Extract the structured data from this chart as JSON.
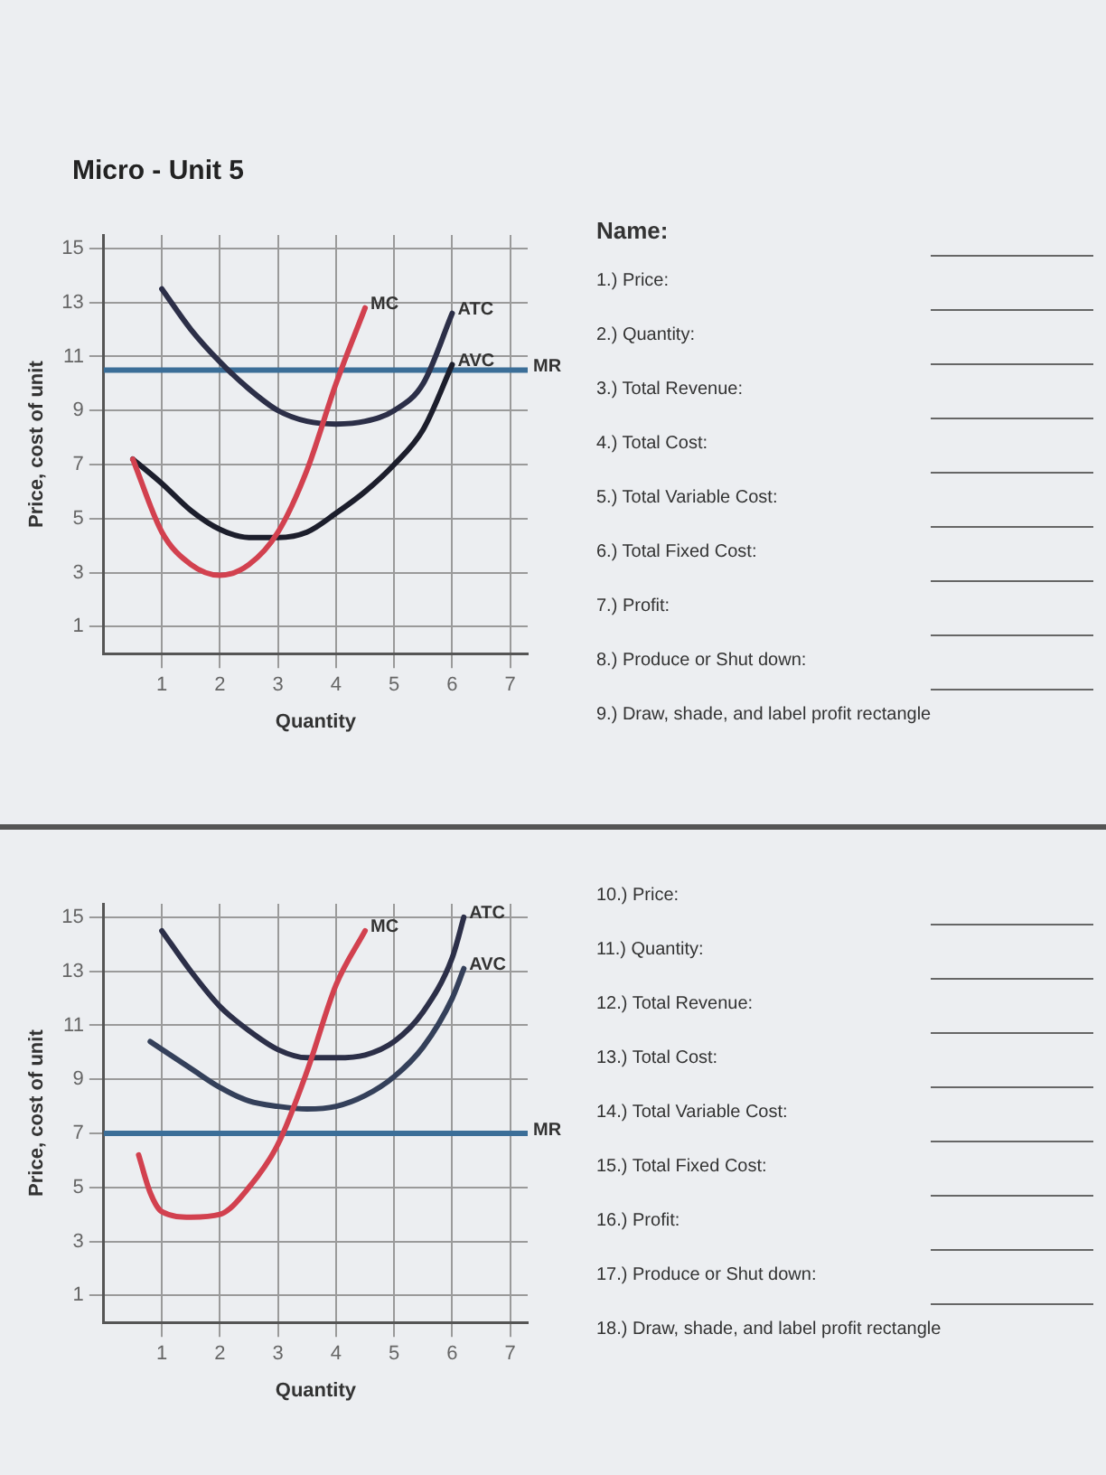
{
  "chart_data": [
    {
      "type": "line",
      "title": "Micro - Unit 5",
      "xlabel": "Quantity",
      "ylabel": "Price, cost of unit",
      "xlim": [
        0,
        7.3
      ],
      "ylim": [
        0,
        15.5
      ],
      "xticks": [
        1,
        2,
        3,
        4,
        5,
        6,
        7
      ],
      "yticks": [
        1,
        3,
        5,
        7,
        9,
        11,
        13,
        15
      ],
      "grid": true,
      "legend": false,
      "marker": "none",
      "line_style": "solid",
      "series": [
        {
          "name": "MC",
          "color": "#d2414f",
          "x": [
            0.5,
            1,
            1.5,
            2,
            2.5,
            3,
            3.5,
            4,
            4.5
          ],
          "values": [
            7.2,
            4.5,
            3.3,
            2.9,
            3.3,
            4.5,
            6.8,
            10,
            12.8
          ]
        },
        {
          "name": "ATC",
          "color": "#2c2f48",
          "x": [
            1,
            1.5,
            2,
            2.5,
            3,
            3.5,
            4,
            4.5,
            5,
            5.5,
            6
          ],
          "values": [
            13.5,
            12,
            10.8,
            9.8,
            9,
            8.6,
            8.5,
            8.6,
            9,
            10,
            12.6
          ]
        },
        {
          "name": "AVC",
          "color": "#1c1e2c",
          "x": [
            0.5,
            1,
            1.5,
            2,
            2.5,
            3,
            3.5,
            4,
            4.5,
            5,
            5.5,
            6
          ],
          "values": [
            7.2,
            6.3,
            5.3,
            4.6,
            4.3,
            4.3,
            4.5,
            5.2,
            6,
            7,
            8.3,
            10.7
          ]
        },
        {
          "name": "MR",
          "color": "#3b6e98",
          "x": [
            0,
            7.3
          ],
          "values": [
            10.5,
            10.5
          ]
        }
      ],
      "annotations": [
        "Name:",
        "1.) Price:",
        "2.) Quantity:",
        "3.) Total Revenue:",
        "4.) Total Cost:",
        "5.) Total Variable Cost:",
        "6.) Total Fixed Cost:",
        "7.) Profit:",
        "8.) Produce or Shut down:",
        "9.) Draw, shade, and label profit rectangle"
      ]
    },
    {
      "type": "line",
      "xlabel": "Quantity",
      "ylabel": "Price, cost of unit",
      "xlim": [
        0,
        7.3
      ],
      "ylim": [
        0,
        15.5
      ],
      "xticks": [
        1,
        2,
        3,
        4,
        5,
        6,
        7
      ],
      "yticks": [
        1,
        3,
        5,
        7,
        9,
        11,
        13,
        15
      ],
      "grid": true,
      "legend": false,
      "marker": "none",
      "line_style": "solid",
      "series": [
        {
          "name": "MC",
          "color": "#d2414f",
          "x": [
            0.6,
            0.8,
            1,
            1.5,
            2,
            2.5,
            3,
            3.5,
            4,
            4.5
          ],
          "values": [
            6.2,
            4.8,
            4.1,
            3.9,
            4,
            5,
            6.6,
            9.3,
            12.5,
            14.5
          ]
        },
        {
          "name": "ATC",
          "color": "#2c2f48",
          "x": [
            1,
            1.5,
            2,
            2.5,
            3,
            3.5,
            4,
            4.5,
            5,
            5.5,
            6,
            6.2
          ],
          "values": [
            14.5,
            13,
            11.7,
            10.8,
            10.1,
            9.8,
            9.8,
            9.9,
            10.4,
            11.5,
            13.5,
            15
          ]
        },
        {
          "name": "AVC",
          "color": "#34405a",
          "x": [
            0.8,
            1.5,
            2,
            2.5,
            3,
            3.5,
            4,
            4.5,
            5,
            5.5,
            6,
            6.2
          ],
          "values": [
            10.4,
            9.4,
            8.7,
            8.2,
            8,
            7.9,
            8,
            8.4,
            9.1,
            10.2,
            12,
            13.1
          ]
        },
        {
          "name": "MR",
          "color": "#3b6e98",
          "x": [
            0,
            7.3
          ],
          "values": [
            7,
            7
          ]
        }
      ],
      "annotations": [
        "10.) Price:",
        "11.) Quantity:",
        "12.) Total Revenue:",
        "13.) Total Cost:",
        "14.) Total Variable Cost:",
        "15.) Total Fixed Cost:",
        "16.) Profit:",
        "17.) Produce or Shut down:",
        "18.) Draw, shade, and label profit rectangle"
      ]
    }
  ]
}
